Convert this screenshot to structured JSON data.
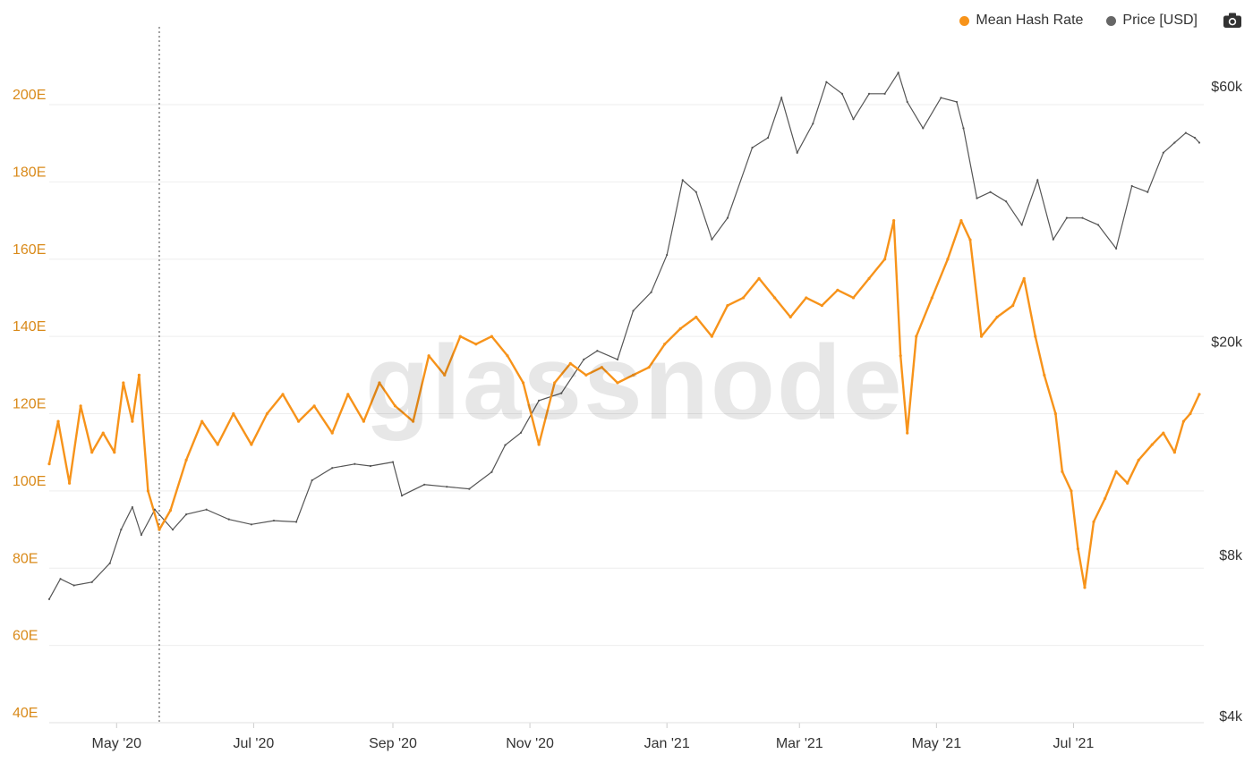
{
  "legend": {
    "series1": "Mean Hash Rate",
    "series2": "Price [USD]",
    "camera_icon": "camera-icon"
  },
  "watermark": "glassnode",
  "colors": {
    "hash_rate": "#f7931a",
    "price": "#555555",
    "left_axis": "#d98a1a",
    "grid": "#eeeeee"
  },
  "chart_data": {
    "type": "line",
    "x_tick_labels": [
      "May '20",
      "Jul '20",
      "Sep '20",
      "Nov '20",
      "Jan '21",
      "Mar '21",
      "May '21",
      "Jul '21"
    ],
    "left_axis": {
      "ticks": [
        "40E",
        "60E",
        "80E",
        "100E",
        "120E",
        "140E",
        "160E",
        "180E",
        "200E"
      ],
      "ylim": [
        40,
        200
      ]
    },
    "right_axis": {
      "ticks": [
        "$4k",
        "$8k",
        "$20k",
        "$60k"
      ],
      "scale": "log"
    },
    "grid": true,
    "legend_position": "top-right",
    "series": [
      {
        "name": "Mean Hash Rate",
        "axis": "left",
        "points": [
          [
            "2020-04-01",
            107
          ],
          [
            "2020-04-05",
            118
          ],
          [
            "2020-04-10",
            102
          ],
          [
            "2020-04-15",
            122
          ],
          [
            "2020-04-20",
            110
          ],
          [
            "2020-04-25",
            115
          ],
          [
            "2020-04-30",
            110
          ],
          [
            "2020-05-04",
            128
          ],
          [
            "2020-05-08",
            118
          ],
          [
            "2020-05-11",
            130
          ],
          [
            "2020-05-15",
            100
          ],
          [
            "2020-05-20",
            90
          ],
          [
            "2020-05-25",
            95
          ],
          [
            "2020-06-01",
            108
          ],
          [
            "2020-06-08",
            118
          ],
          [
            "2020-06-15",
            112
          ],
          [
            "2020-06-22",
            120
          ],
          [
            "2020-06-30",
            112
          ],
          [
            "2020-07-07",
            120
          ],
          [
            "2020-07-14",
            125
          ],
          [
            "2020-07-21",
            118
          ],
          [
            "2020-07-28",
            122
          ],
          [
            "2020-08-05",
            115
          ],
          [
            "2020-08-12",
            125
          ],
          [
            "2020-08-19",
            118
          ],
          [
            "2020-08-26",
            128
          ],
          [
            "2020-09-02",
            122
          ],
          [
            "2020-09-10",
            118
          ],
          [
            "2020-09-17",
            135
          ],
          [
            "2020-09-24",
            130
          ],
          [
            "2020-10-01",
            140
          ],
          [
            "2020-10-08",
            138
          ],
          [
            "2020-10-15",
            140
          ],
          [
            "2020-10-22",
            135
          ],
          [
            "2020-10-29",
            128
          ],
          [
            "2020-11-05",
            112
          ],
          [
            "2020-11-12",
            128
          ],
          [
            "2020-11-19",
            133
          ],
          [
            "2020-11-26",
            130
          ],
          [
            "2020-12-03",
            132
          ],
          [
            "2020-12-10",
            128
          ],
          [
            "2020-12-17",
            130
          ],
          [
            "2020-12-24",
            132
          ],
          [
            "2020-12-31",
            138
          ],
          [
            "2021-01-07",
            142
          ],
          [
            "2021-01-14",
            145
          ],
          [
            "2021-01-21",
            140
          ],
          [
            "2021-01-28",
            148
          ],
          [
            "2021-02-04",
            150
          ],
          [
            "2021-02-11",
            155
          ],
          [
            "2021-02-18",
            150
          ],
          [
            "2021-02-25",
            145
          ],
          [
            "2021-03-04",
            150
          ],
          [
            "2021-03-11",
            148
          ],
          [
            "2021-03-18",
            152
          ],
          [
            "2021-03-25",
            150
          ],
          [
            "2021-04-01",
            155
          ],
          [
            "2021-04-08",
            160
          ],
          [
            "2021-04-12",
            170
          ],
          [
            "2021-04-15",
            135
          ],
          [
            "2021-04-18",
            115
          ],
          [
            "2021-04-22",
            140
          ],
          [
            "2021-04-29",
            150
          ],
          [
            "2021-05-06",
            160
          ],
          [
            "2021-05-12",
            170
          ],
          [
            "2021-05-16",
            165
          ],
          [
            "2021-05-21",
            140
          ],
          [
            "2021-05-28",
            145
          ],
          [
            "2021-06-04",
            148
          ],
          [
            "2021-06-09",
            155
          ],
          [
            "2021-06-14",
            140
          ],
          [
            "2021-06-18",
            130
          ],
          [
            "2021-06-23",
            120
          ],
          [
            "2021-06-26",
            105
          ],
          [
            "2021-06-30",
            100
          ],
          [
            "2021-07-03",
            85
          ],
          [
            "2021-07-06",
            75
          ],
          [
            "2021-07-10",
            92
          ],
          [
            "2021-07-15",
            98
          ],
          [
            "2021-07-20",
            105
          ],
          [
            "2021-07-25",
            102
          ],
          [
            "2021-07-30",
            108
          ],
          [
            "2021-08-05",
            112
          ],
          [
            "2021-08-10",
            115
          ],
          [
            "2021-08-15",
            110
          ],
          [
            "2021-08-19",
            118
          ],
          [
            "2021-08-22",
            120
          ],
          [
            "2021-08-26",
            125
          ]
        ]
      },
      {
        "name": "Price [USD]",
        "axis": "right",
        "points": [
          [
            "2020-04-01",
            6600
          ],
          [
            "2020-04-06",
            7200
          ],
          [
            "2020-04-12",
            7000
          ],
          [
            "2020-04-20",
            7100
          ],
          [
            "2020-04-28",
            7700
          ],
          [
            "2020-05-03",
            8900
          ],
          [
            "2020-05-08",
            9800
          ],
          [
            "2020-05-12",
            8700
          ],
          [
            "2020-05-18",
            9700
          ],
          [
            "2020-05-26",
            8900
          ],
          [
            "2020-06-01",
            9500
          ],
          [
            "2020-06-10",
            9700
          ],
          [
            "2020-06-20",
            9300
          ],
          [
            "2020-06-30",
            9100
          ],
          [
            "2020-07-10",
            9250
          ],
          [
            "2020-07-20",
            9200
          ],
          [
            "2020-07-27",
            11000
          ],
          [
            "2020-08-05",
            11600
          ],
          [
            "2020-08-15",
            11800
          ],
          [
            "2020-08-22",
            11700
          ],
          [
            "2020-09-01",
            11900
          ],
          [
            "2020-09-05",
            10300
          ],
          [
            "2020-09-15",
            10800
          ],
          [
            "2020-09-25",
            10700
          ],
          [
            "2020-10-05",
            10600
          ],
          [
            "2020-10-15",
            11400
          ],
          [
            "2020-10-21",
            12800
          ],
          [
            "2020-10-28",
            13500
          ],
          [
            "2020-11-05",
            15500
          ],
          [
            "2020-11-15",
            16000
          ],
          [
            "2020-11-25",
            18500
          ],
          [
            "2020-12-01",
            19200
          ],
          [
            "2020-12-10",
            18500
          ],
          [
            "2020-12-17",
            22800
          ],
          [
            "2020-12-25",
            24700
          ],
          [
            "2021-01-01",
            29000
          ],
          [
            "2021-01-08",
            40000
          ],
          [
            "2021-01-14",
            38000
          ],
          [
            "2021-01-21",
            31000
          ],
          [
            "2021-01-28",
            34000
          ],
          [
            "2021-02-08",
            46000
          ],
          [
            "2021-02-15",
            48000
          ],
          [
            "2021-02-21",
            57000
          ],
          [
            "2021-02-28",
            45000
          ],
          [
            "2021-03-07",
            51000
          ],
          [
            "2021-03-13",
            61000
          ],
          [
            "2021-03-20",
            58000
          ],
          [
            "2021-03-25",
            52000
          ],
          [
            "2021-04-01",
            58000
          ],
          [
            "2021-04-08",
            58000
          ],
          [
            "2021-04-14",
            63500
          ],
          [
            "2021-04-18",
            56000
          ],
          [
            "2021-04-25",
            50000
          ],
          [
            "2021-05-03",
            57000
          ],
          [
            "2021-05-10",
            56000
          ],
          [
            "2021-05-13",
            50000
          ],
          [
            "2021-05-19",
            37000
          ],
          [
            "2021-05-25",
            38000
          ],
          [
            "2021-06-01",
            36500
          ],
          [
            "2021-06-08",
            33000
          ],
          [
            "2021-06-15",
            40000
          ],
          [
            "2021-06-22",
            31000
          ],
          [
            "2021-06-28",
            34000
          ],
          [
            "2021-07-05",
            34000
          ],
          [
            "2021-07-12",
            33000
          ],
          [
            "2021-07-20",
            29800
          ],
          [
            "2021-07-27",
            39000
          ],
          [
            "2021-08-03",
            38000
          ],
          [
            "2021-08-10",
            45000
          ],
          [
            "2021-08-15",
            47000
          ],
          [
            "2021-08-20",
            49000
          ],
          [
            "2021-08-24",
            48000
          ],
          [
            "2021-08-26",
            47000
          ]
        ]
      }
    ]
  }
}
